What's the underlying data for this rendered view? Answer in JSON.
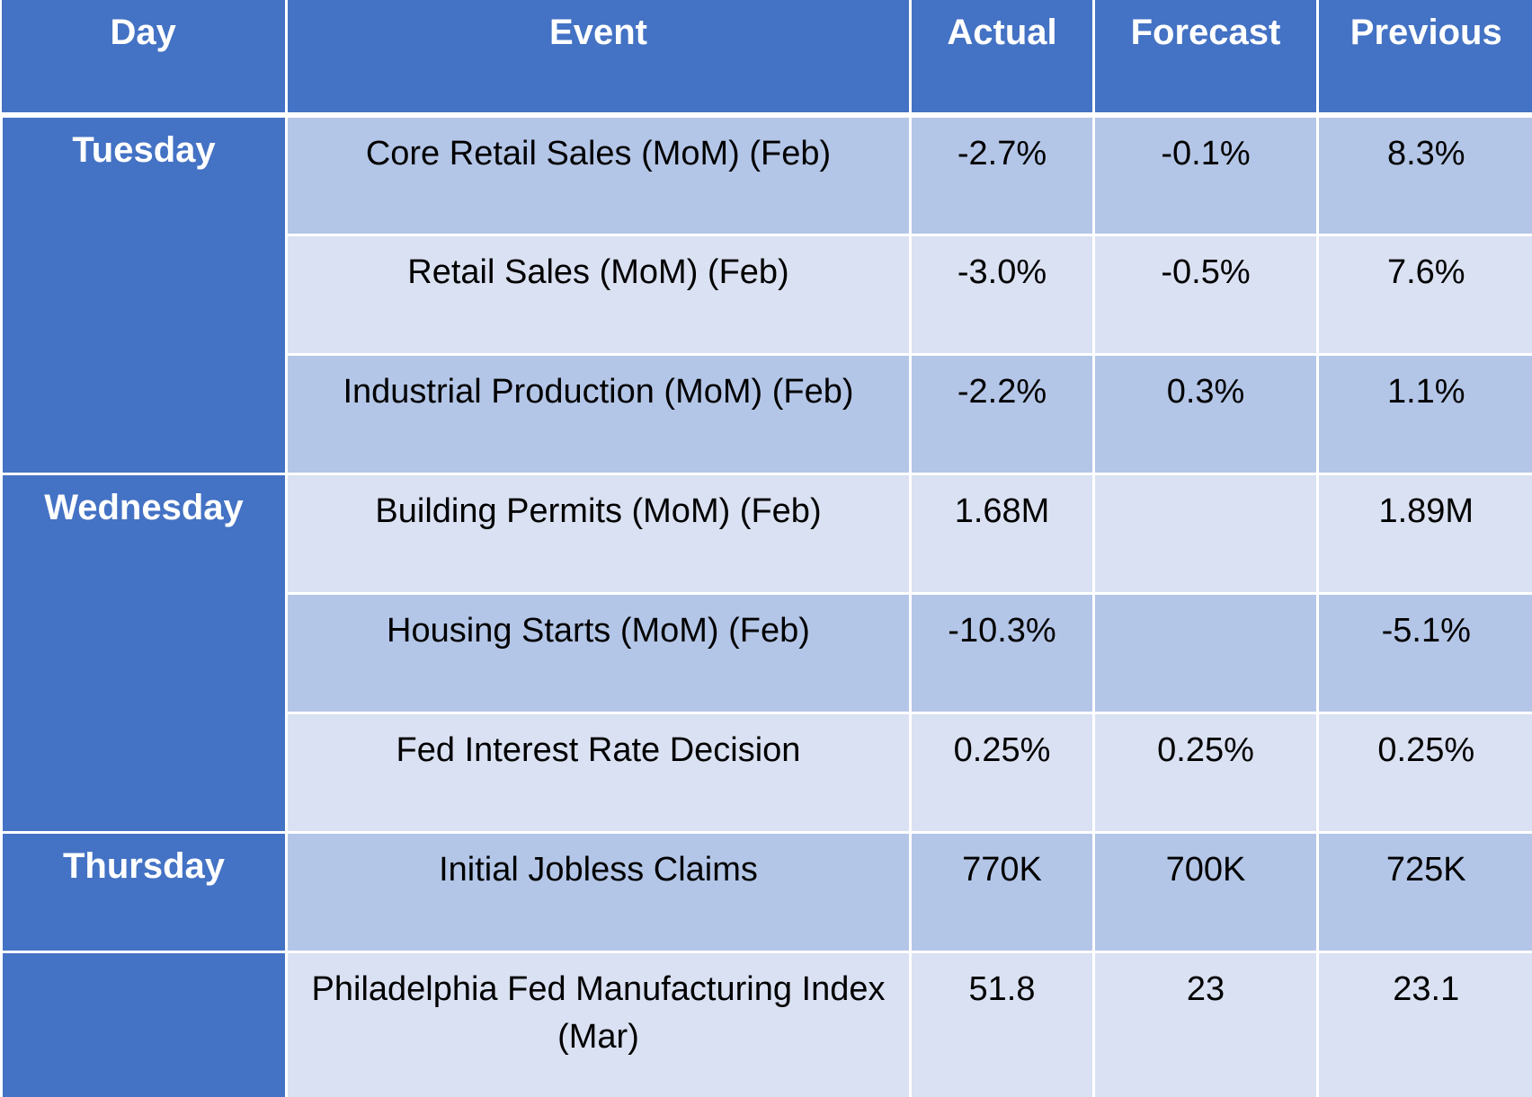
{
  "headers": {
    "day": "Day",
    "event": "Event",
    "actual": "Actual",
    "forecast": "Forecast",
    "previous": "Previous"
  },
  "days": {
    "tuesday": "Tuesday",
    "wednesday": "Wednesday",
    "thursday": "Thursday"
  },
  "rows": [
    {
      "event": "Core Retail Sales (MoM) (Feb)",
      "actual": "-2.7%",
      "forecast": "-0.1%",
      "previous": "8.3%"
    },
    {
      "event": "Retail Sales (MoM) (Feb)",
      "actual": "-3.0%",
      "forecast": "-0.5%",
      "previous": "7.6%"
    },
    {
      "event": "Industrial Production (MoM) (Feb)",
      "actual": "-2.2%",
      "forecast": "0.3%",
      "previous": "1.1%"
    },
    {
      "event": "Building Permits (MoM) (Feb)",
      "actual": "1.68M",
      "forecast": "",
      "previous": "1.89M"
    },
    {
      "event": "Housing Starts (MoM) (Feb)",
      "actual": "-10.3%",
      "forecast": "",
      "previous": "-5.1%"
    },
    {
      "event": "Fed Interest Rate Decision",
      "actual": "0.25%",
      "forecast": "0.25%",
      "previous": "0.25%"
    },
    {
      "event": "Initial Jobless Claims",
      "actual": "770K",
      "forecast": "700K",
      "previous": "725K"
    },
    {
      "event": "Philadelphia Fed Manufacturing Index (Mar)",
      "actual": "51.8",
      "forecast": "23",
      "previous": "23.1"
    }
  ],
  "colors": {
    "header_bg": "#4472c4",
    "row_dark": "#b4c6e7",
    "row_light": "#dae1f2",
    "negative": "#ff0000",
    "positive": "#70ad47"
  }
}
